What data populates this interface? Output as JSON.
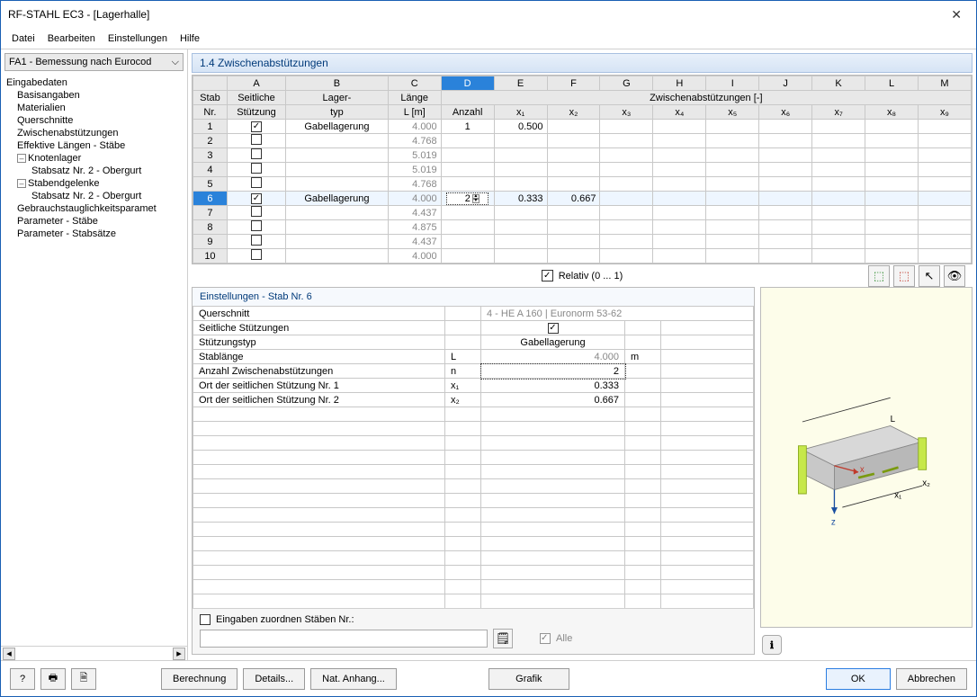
{
  "window": {
    "title": "RF-STAHL EC3 - [Lagerhalle]"
  },
  "menu": [
    "Datei",
    "Bearbeiten",
    "Einstellungen",
    "Hilfe"
  ],
  "combo": "FA1 - Bemessung nach Eurocod",
  "tree": {
    "root": "Eingabedaten",
    "items": [
      {
        "label": "Basisangaben",
        "indent": 1
      },
      {
        "label": "Materialien",
        "indent": 1
      },
      {
        "label": "Querschnitte",
        "indent": 1
      },
      {
        "label": "Zwischenabstützungen",
        "indent": 1
      },
      {
        "label": "Effektive Längen - Stäbe",
        "indent": 1
      },
      {
        "label": "Knotenlager",
        "indent": 1,
        "exp": true
      },
      {
        "label": "Stabsatz Nr. 2 - Obergurt",
        "indent": 2
      },
      {
        "label": "Stabendgelenke",
        "indent": 1,
        "exp": true
      },
      {
        "label": "Stabsatz Nr. 2 - Obergurt",
        "indent": 2
      },
      {
        "label": "Gebrauchstauglichkeitsparamet",
        "indent": 1
      },
      {
        "label": "Parameter - Stäbe",
        "indent": 1
      },
      {
        "label": "Parameter - Stabsätze",
        "indent": 1
      }
    ]
  },
  "section_title": "1.4 Zwischenabstützungen",
  "grid": {
    "letters": [
      "A",
      "B",
      "C",
      "D",
      "E",
      "F",
      "G",
      "H",
      "I",
      "J",
      "K",
      "L",
      "M"
    ],
    "active_letter": "D",
    "headers_row1": {
      "stab": "Stab",
      "a": "Seitliche",
      "b": "Lager-",
      "c": "Länge",
      "group": "Zwischenabstützungen [-]"
    },
    "headers_row2": {
      "stab": "Nr.",
      "a": "Stützung",
      "b": "typ",
      "c": "L [m]",
      "d": "Anzahl",
      "e": "x₁",
      "f": "x₂",
      "g": "x₃",
      "h": "x₄",
      "i": "x₅",
      "j": "x₆",
      "k": "x₇",
      "l": "x₈",
      "m": "x₉"
    },
    "rows": [
      {
        "nr": "1",
        "chk": true,
        "typ": "Gabellagerung",
        "len": "4.000",
        "anz": "1",
        "x1": "0.500"
      },
      {
        "nr": "2",
        "chk": false,
        "typ": "",
        "len": "4.768"
      },
      {
        "nr": "3",
        "chk": false,
        "typ": "",
        "len": "5.019"
      },
      {
        "nr": "4",
        "chk": false,
        "typ": "",
        "len": "5.019"
      },
      {
        "nr": "5",
        "chk": false,
        "typ": "",
        "len": "4.768"
      },
      {
        "nr": "6",
        "chk": true,
        "typ": "Gabellagerung",
        "len": "4.000",
        "anz": "2",
        "x1": "0.333",
        "x2": "0.667",
        "active": true,
        "editing": true
      },
      {
        "nr": "7",
        "chk": false,
        "typ": "",
        "len": "4.437"
      },
      {
        "nr": "8",
        "chk": false,
        "typ": "",
        "len": "4.875"
      },
      {
        "nr": "9",
        "chk": false,
        "typ": "",
        "len": "4.437"
      },
      {
        "nr": "10",
        "chk": false,
        "typ": "",
        "len": "4.000"
      }
    ]
  },
  "relativ_label": "Relativ (0 ... 1)",
  "settings_title": "Einstellungen - Stab Nr. 6",
  "props": [
    {
      "label": "Querschnitt",
      "sym": "",
      "val": "4 - HE A 160 | Euronorm 53-62",
      "unit": "",
      "span": true,
      "dim": true
    },
    {
      "label": "Seitliche Stützungen",
      "sym": "",
      "val": "__chk__",
      "unit": ""
    },
    {
      "label": "Stützungstyp",
      "sym": "",
      "val": "Gabellagerung",
      "unit": "",
      "center": true
    },
    {
      "label": "Stablänge",
      "sym": "L",
      "val": "4.000",
      "unit": "m",
      "dim": true
    },
    {
      "label": "Anzahl Zwischenabstützungen",
      "sym": "n",
      "val": "2",
      "unit": "",
      "boxed": true
    },
    {
      "label": "Ort der seitlichen Stützung Nr. 1",
      "sym": "x₁",
      "val": "0.333",
      "unit": ""
    },
    {
      "label": "Ort der seitlichen Stützung Nr. 2",
      "sym": "x₂",
      "val": "0.667",
      "unit": ""
    }
  ],
  "assign": {
    "label": "Eingaben zuordnen Stäben Nr.:",
    "alle": "Alle"
  },
  "footer": {
    "berechnung": "Berechnung",
    "details": "Details...",
    "anhang": "Nat. Anhang...",
    "grafik": "Grafik",
    "ok": "OK",
    "abbrechen": "Abbrechen"
  },
  "colors": {
    "accent": "#2a82da"
  }
}
